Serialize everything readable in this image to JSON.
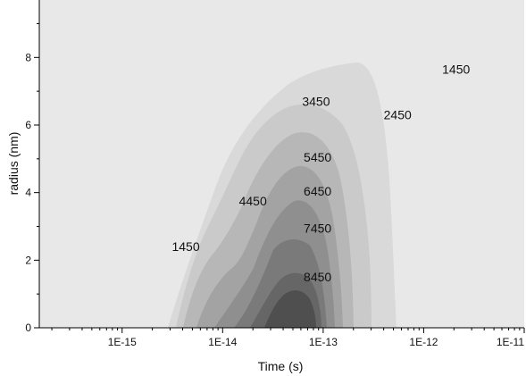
{
  "chart_data": {
    "type": "contour",
    "xlabel": "Time (s)",
    "ylabel": "radius (nm)",
    "x_scale": "log",
    "xlim": [
      1.5e-16,
      1e-11
    ],
    "ylim": [
      0,
      9.7
    ],
    "x_ticks": [
      1e-15,
      1e-14,
      1e-13,
      1e-12,
      1e-11
    ],
    "x_tick_labels": [
      "1E-15",
      "1E-14",
      "1E-13",
      "1E-12",
      "1E-11"
    ],
    "y_ticks": [
      0,
      2,
      4,
      6,
      8
    ],
    "y_tick_labels": [
      "0",
      "2",
      "4",
      "6",
      "8"
    ],
    "grid": false,
    "contour_levels": [
      1450,
      2450,
      3450,
      4450,
      5450,
      6450,
      7450,
      8450
    ],
    "level_colors": [
      "#e8e8e8",
      "#d9d9d9",
      "#cacaca",
      "#b7b7b7",
      "#a3a3a3",
      "#8f8f8f",
      "#7a7a7a",
      "#666666",
      "#4f4f4f"
    ],
    "annotations": [
      {
        "text": "1450",
        "x": 4.3e-15,
        "y": 2.4
      },
      {
        "text": "4450",
        "x": 2e-14,
        "y": 3.75
      },
      {
        "text": "3450",
        "x": 8.5e-14,
        "y": 6.7
      },
      {
        "text": "2450",
        "x": 5.5e-13,
        "y": 6.3
      },
      {
        "text": "1450",
        "x": 2.1e-12,
        "y": 7.65
      },
      {
        "text": "5450",
        "x": 8.8e-14,
        "y": 5.05
      },
      {
        "text": "6450",
        "x": 8.8e-14,
        "y": 4.05
      },
      {
        "text": "7450",
        "x": 8.8e-14,
        "y": 2.95
      },
      {
        "text": "8450",
        "x": 8.8e-14,
        "y": 1.5
      }
    ]
  }
}
